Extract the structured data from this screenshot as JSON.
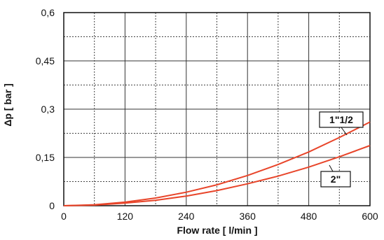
{
  "chart_data": {
    "type": "line",
    "xlabel": "Flow rate [ l/min ]",
    "ylabel": "Δp [ bar ]",
    "xlim": [
      0,
      600
    ],
    "ylim": [
      0,
      0.6
    ],
    "x_ticks": [
      0,
      120,
      240,
      360,
      480,
      600
    ],
    "x_tick_labels": [
      "0",
      "120",
      "240",
      "360",
      "480",
      "600"
    ],
    "y_ticks": [
      0,
      0.15,
      0.3,
      0.45,
      0.6
    ],
    "y_tick_labels": [
      "0",
      "0,15",
      "0,3",
      "0,45",
      "0,6"
    ],
    "grid": true,
    "line_color": "#e8452a",
    "series": [
      {
        "name": "1\"1/2",
        "x": [
          0,
          60,
          120,
          180,
          240,
          300,
          360,
          420,
          480,
          540,
          600
        ],
        "y": [
          0,
          0.003,
          0.011,
          0.024,
          0.042,
          0.065,
          0.094,
          0.128,
          0.167,
          0.212,
          0.26
        ]
      },
      {
        "name": "2\"",
        "x": [
          0,
          60,
          120,
          180,
          240,
          300,
          360,
          420,
          480,
          540,
          600
        ],
        "y": [
          0,
          0.002,
          0.008,
          0.017,
          0.03,
          0.047,
          0.068,
          0.092,
          0.12,
          0.152,
          0.187
        ]
      }
    ]
  }
}
